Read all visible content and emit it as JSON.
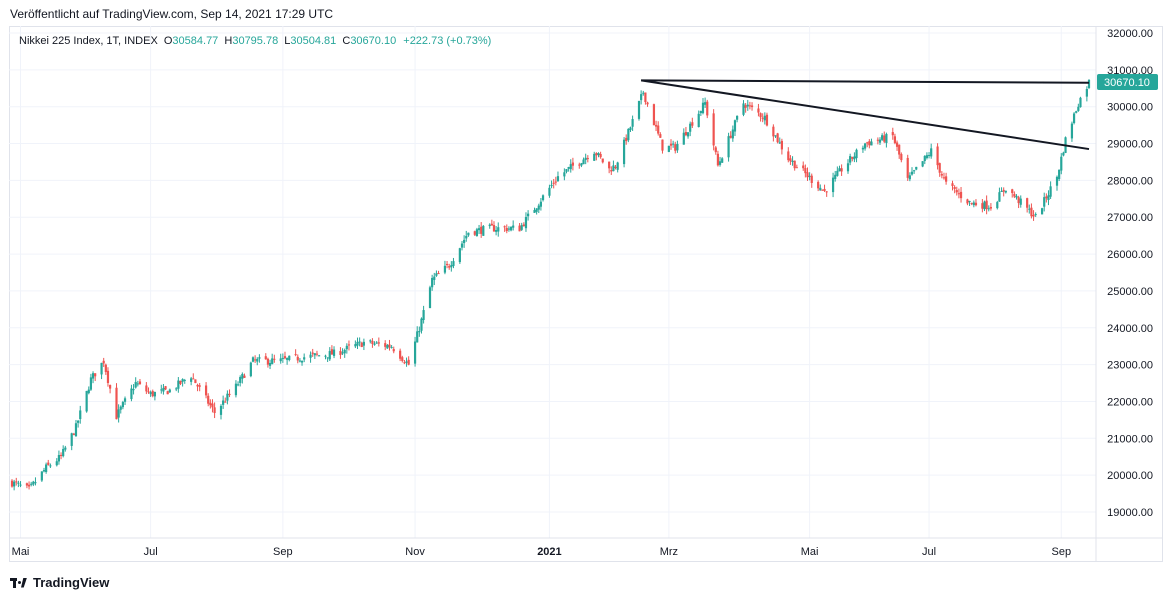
{
  "header": {
    "published": "Veröffentlicht auf TradingView.com, Sep 14, 2021 17:29 UTC"
  },
  "legend": {
    "symbol": "Nikkei 225 Index, 1T, INDEX",
    "o_label": "O",
    "o_value": "30584.77",
    "h_label": "H",
    "h_value": "30795.78",
    "l_label": "L",
    "l_value": "30504.81",
    "c_label": "C",
    "c_value": "30670.10",
    "change": "+222.73 (+0.73%)"
  },
  "footer": {
    "brand": "TradingView",
    "logo_icon": "tradingview-logo-icon"
  },
  "colors": {
    "up": "#26a69a",
    "down": "#ef5350",
    "trendline": "#131722",
    "grid": "#f0f3fa",
    "price_tag": "#26a69a"
  },
  "chart_data": {
    "type": "candlestick",
    "title": "Nikkei 225 Index, 1T, INDEX",
    "x_ticks": [
      "Mai",
      "Jul",
      "Sep",
      "Nov",
      "2021",
      "Mrz",
      "Mai",
      "Jul",
      "Sep"
    ],
    "y_ticks": [
      "32000.00",
      "31000.00",
      "30000.00",
      "29000.00",
      "28000.00",
      "27000.00",
      "26000.00",
      "25000.00",
      "24000.00",
      "23000.00",
      "22000.00",
      "21000.00",
      "20000.00",
      "19000.00"
    ],
    "ylim": [
      18600,
      32200
    ],
    "last_price": "30670.10",
    "grid": true,
    "close_path": [
      [
        "2020-04-27",
        19800
      ],
      [
        "2020-05-05",
        19600
      ],
      [
        "2020-05-13",
        20200
      ],
      [
        "2020-05-20",
        20500
      ],
      [
        "2020-05-27",
        21300
      ],
      [
        "2020-06-03",
        22600
      ],
      [
        "2020-06-09",
        23100
      ],
      [
        "2020-06-15",
        21600
      ],
      [
        "2020-06-24",
        22500
      ],
      [
        "2020-07-01",
        22200
      ],
      [
        "2020-07-10",
        22300
      ],
      [
        "2020-07-20",
        22700
      ],
      [
        "2020-07-31",
        21700
      ],
      [
        "2020-08-10",
        22400
      ],
      [
        "2020-08-18",
        23100
      ],
      [
        "2020-08-31",
        23100
      ],
      [
        "2020-09-10",
        23200
      ],
      [
        "2020-09-25",
        23300
      ],
      [
        "2020-10-09",
        23600
      ],
      [
        "2020-10-22",
        23500
      ],
      [
        "2020-10-30",
        23000
      ],
      [
        "2020-11-05",
        24200
      ],
      [
        "2020-11-10",
        25300
      ],
      [
        "2020-11-18",
        25700
      ],
      [
        "2020-11-27",
        26600
      ],
      [
        "2020-12-08",
        26700
      ],
      [
        "2020-12-21",
        26700
      ],
      [
        "2020-12-30",
        27400
      ],
      [
        "2021-01-08",
        28100
      ],
      [
        "2021-01-25",
        28800
      ],
      [
        "2021-02-01",
        28300
      ],
      [
        "2021-02-04",
        28400
      ],
      [
        "2021-02-12",
        29600
      ],
      [
        "2021-02-17",
        30400
      ],
      [
        "2021-02-26",
        28900
      ],
      [
        "2021-03-04",
        28900
      ],
      [
        "2021-03-18",
        30100
      ],
      [
        "2021-03-24",
        28400
      ],
      [
        "2021-04-05",
        30100
      ],
      [
        "2021-04-15",
        29700
      ],
      [
        "2021-04-26",
        28600
      ],
      [
        "2021-05-13",
        27700
      ],
      [
        "2021-05-21",
        28300
      ],
      [
        "2021-06-01",
        29000
      ],
      [
        "2021-06-14",
        29200
      ],
      [
        "2021-06-21",
        28000
      ],
      [
        "2021-07-02",
        28800
      ],
      [
        "2021-07-09",
        27900
      ],
      [
        "2021-07-20",
        27400
      ],
      [
        "2021-07-30",
        27300
      ],
      [
        "2021-08-06",
        27800
      ],
      [
        "2021-08-20",
        27000
      ],
      [
        "2021-08-30",
        28100
      ],
      [
        "2021-09-03",
        29100
      ],
      [
        "2021-09-09",
        30100
      ],
      [
        "2021-09-14",
        30670
      ]
    ],
    "trendlines": [
      {
        "from": [
          "2021-02-16",
          30714
        ],
        "to": [
          "2021-09-14",
          30650
        ]
      },
      {
        "from": [
          "2021-02-16",
          30714
        ],
        "to": [
          "2021-09-14",
          28850
        ]
      }
    ]
  }
}
